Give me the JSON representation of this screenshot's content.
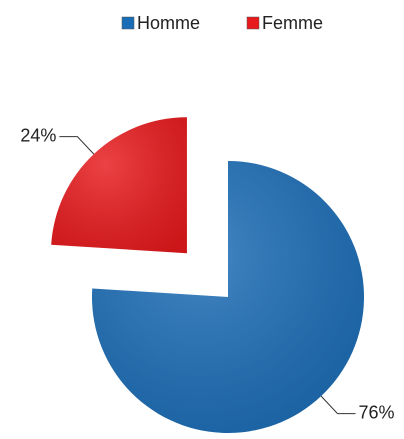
{
  "chart_data": {
    "type": "pie",
    "categories": [
      "Homme",
      "Femme"
    ],
    "values": [
      76,
      24
    ],
    "value_labels": [
      "76%",
      "24%"
    ],
    "colors": [
      "#1a6cb6",
      "#e8191c"
    ],
    "explode": [
      false,
      true
    ],
    "legend": "top"
  }
}
